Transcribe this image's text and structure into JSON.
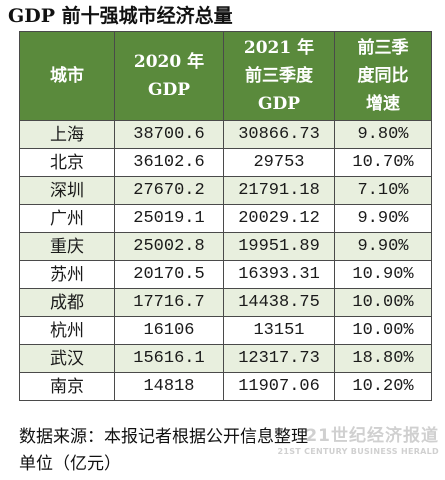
{
  "title": "GDP 前十强城市经济总量",
  "table": {
    "headers": {
      "city": "城市",
      "gdp2020_line1": "2020 年",
      "gdp2020_line2": "GDP",
      "gdp2021_line1": "2021 年",
      "gdp2021_line2": "前三季度",
      "gdp2021_line3": "GDP",
      "growth_line1": "前三季",
      "growth_line2": "度同比",
      "growth_line3": "增速"
    },
    "rows": [
      {
        "city": "上海",
        "gdp2020": "38700.6",
        "gdp2021q3": "30866.73",
        "growth": "9.80%"
      },
      {
        "city": "北京",
        "gdp2020": "36102.6",
        "gdp2021q3": "29753",
        "growth": "10.70%"
      },
      {
        "city": "深圳",
        "gdp2020": "27670.2",
        "gdp2021q3": "21791.18",
        "growth": "7.10%"
      },
      {
        "city": "广州",
        "gdp2020": "25019.1",
        "gdp2021q3": "20029.12",
        "growth": "9.90%"
      },
      {
        "city": "重庆",
        "gdp2020": "25002.8",
        "gdp2021q3": "19951.89",
        "growth": "9.90%"
      },
      {
        "city": "苏州",
        "gdp2020": "20170.5",
        "gdp2021q3": "16393.31",
        "growth": "10.90%"
      },
      {
        "city": "成都",
        "gdp2020": "17716.7",
        "gdp2021q3": "14438.75",
        "growth": "10.00%"
      },
      {
        "city": "杭州",
        "gdp2020": "16106",
        "gdp2021q3": "13151",
        "growth": "10.00%"
      },
      {
        "city": "武汉",
        "gdp2020": "15616.1",
        "gdp2021q3": "12317.73",
        "growth": "18.80%"
      },
      {
        "city": "南京",
        "gdp2020": "14818",
        "gdp2021q3": "11907.06",
        "growth": "10.20%"
      }
    ]
  },
  "footer": {
    "source": "数据来源：本报记者根据公开信息整理",
    "unit": "单位（亿元）"
  },
  "watermark": {
    "name_cn": "21世纪经济报道",
    "name_en": "21ST CENTURY BUSINESS HERALD"
  },
  "colors": {
    "header_bg": "#5a8a3c",
    "alt_row_bg": "#e8efde",
    "border": "#4a4a4a"
  }
}
